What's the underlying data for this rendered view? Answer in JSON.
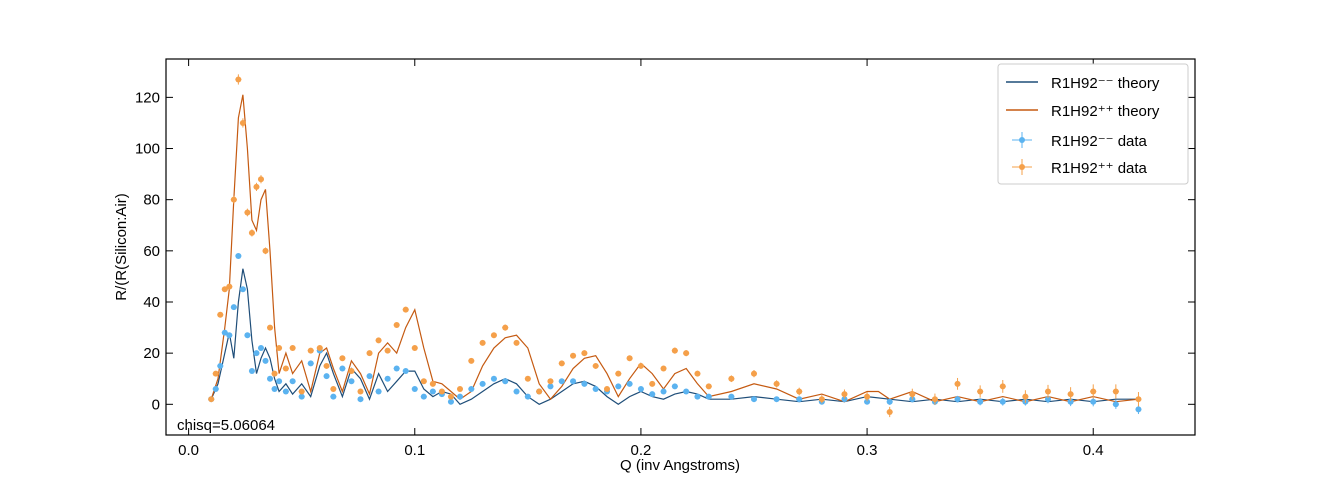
{
  "chart_data": {
    "type": "line",
    "title": "",
    "xlabel": "Q (inv Angstroms)",
    "ylabel": "R/(R(Silicon:Air)",
    "xlim": [
      -0.01,
      0.445
    ],
    "ylim": [
      -12,
      135
    ],
    "xticks": [
      0.0,
      0.1,
      0.2,
      0.3,
      0.4
    ],
    "xtick_labels": [
      "0.0",
      "0.1",
      "0.2",
      "0.3",
      "0.4"
    ],
    "yticks": [
      0,
      20,
      40,
      60,
      80,
      100,
      120
    ],
    "ytick_labels": [
      "0",
      "20",
      "40",
      "60",
      "80",
      "100",
      "120"
    ],
    "annotation": "chisq=5.06064",
    "legend_position": "top-right",
    "colors": {
      "minus_theory": "#1f4e79",
      "plus_theory": "#c55a11",
      "minus_data": "#5bb3f0",
      "plus_data": "#f5a04a"
    },
    "series": [
      {
        "name": "R1H92⁻⁻ theory",
        "kind": "line",
        "color": "#1f4e79",
        "x": [
          0.01,
          0.013,
          0.016,
          0.018,
          0.02,
          0.022,
          0.024,
          0.026,
          0.028,
          0.03,
          0.032,
          0.034,
          0.036,
          0.038,
          0.04,
          0.043,
          0.046,
          0.05,
          0.054,
          0.058,
          0.061,
          0.064,
          0.068,
          0.072,
          0.076,
          0.08,
          0.084,
          0.088,
          0.092,
          0.096,
          0.1,
          0.104,
          0.108,
          0.112,
          0.116,
          0.12,
          0.125,
          0.13,
          0.135,
          0.14,
          0.145,
          0.15,
          0.155,
          0.16,
          0.165,
          0.17,
          0.175,
          0.18,
          0.185,
          0.19,
          0.195,
          0.2,
          0.205,
          0.21,
          0.215,
          0.22,
          0.225,
          0.23,
          0.24,
          0.25,
          0.26,
          0.27,
          0.28,
          0.29,
          0.3,
          0.31,
          0.32,
          0.33,
          0.34,
          0.35,
          0.36,
          0.37,
          0.38,
          0.39,
          0.4,
          0.41,
          0.42
        ],
        "y": [
          2,
          8,
          20,
          28,
          18,
          40,
          53,
          45,
          25,
          12,
          18,
          22,
          18,
          10,
          5,
          8,
          4,
          8,
          3,
          15,
          20,
          12,
          3,
          14,
          10,
          2,
          12,
          5,
          9,
          13,
          13,
          6,
          3,
          5,
          4,
          0,
          2,
          5,
          8,
          10,
          8,
          3,
          0,
          2,
          5,
          8,
          9,
          7,
          3,
          0,
          3,
          5,
          3,
          2,
          4,
          5,
          4,
          2,
          2,
          3,
          2,
          1,
          2,
          1,
          3,
          2,
          1,
          2,
          1,
          2,
          1,
          2,
          1,
          2,
          1,
          2,
          2
        ]
      },
      {
        "name": "R1H92⁺⁺ theory",
        "kind": "line",
        "color": "#c55a11",
        "x": [
          0.01,
          0.013,
          0.016,
          0.018,
          0.02,
          0.022,
          0.024,
          0.026,
          0.028,
          0.03,
          0.032,
          0.034,
          0.036,
          0.038,
          0.04,
          0.043,
          0.046,
          0.05,
          0.054,
          0.058,
          0.061,
          0.064,
          0.068,
          0.072,
          0.076,
          0.08,
          0.084,
          0.088,
          0.092,
          0.096,
          0.1,
          0.104,
          0.108,
          0.112,
          0.116,
          0.12,
          0.125,
          0.13,
          0.135,
          0.14,
          0.145,
          0.15,
          0.155,
          0.16,
          0.165,
          0.17,
          0.175,
          0.18,
          0.185,
          0.19,
          0.195,
          0.2,
          0.205,
          0.21,
          0.215,
          0.22,
          0.225,
          0.23,
          0.24,
          0.25,
          0.26,
          0.27,
          0.28,
          0.29,
          0.3,
          0.305,
          0.31,
          0.32,
          0.33,
          0.34,
          0.35,
          0.36,
          0.37,
          0.38,
          0.39,
          0.4,
          0.41,
          0.42
        ],
        "y": [
          2,
          10,
          30,
          45,
          80,
          112,
          121,
          100,
          72,
          68,
          80,
          84,
          60,
          30,
          12,
          20,
          12,
          17,
          5,
          20,
          22,
          14,
          5,
          17,
          12,
          4,
          20,
          24,
          20,
          30,
          37,
          22,
          9,
          8,
          5,
          2,
          5,
          15,
          22,
          26,
          27,
          22,
          8,
          2,
          7,
          14,
          18,
          19,
          12,
          3,
          10,
          16,
          12,
          6,
          12,
          14,
          8,
          3,
          5,
          8,
          6,
          2,
          4,
          1,
          5,
          5,
          2,
          5,
          1,
          3,
          1,
          3,
          1,
          3,
          1,
          3,
          1,
          2
        ]
      },
      {
        "name": "R1H92⁻⁻ data",
        "kind": "errorbar",
        "color": "#5bb3f0",
        "x": [
          0.01,
          0.012,
          0.014,
          0.016,
          0.018,
          0.02,
          0.022,
          0.024,
          0.026,
          0.028,
          0.03,
          0.032,
          0.034,
          0.036,
          0.038,
          0.04,
          0.043,
          0.046,
          0.05,
          0.054,
          0.058,
          0.061,
          0.064,
          0.068,
          0.072,
          0.076,
          0.08,
          0.084,
          0.088,
          0.092,
          0.096,
          0.1,
          0.104,
          0.108,
          0.112,
          0.116,
          0.12,
          0.125,
          0.13,
          0.135,
          0.14,
          0.145,
          0.15,
          0.155,
          0.16,
          0.165,
          0.17,
          0.175,
          0.18,
          0.185,
          0.19,
          0.195,
          0.2,
          0.205,
          0.21,
          0.215,
          0.22,
          0.225,
          0.23,
          0.24,
          0.25,
          0.26,
          0.27,
          0.28,
          0.29,
          0.3,
          0.31,
          0.32,
          0.33,
          0.34,
          0.35,
          0.36,
          0.37,
          0.38,
          0.39,
          0.4,
          0.41,
          0.42
        ],
        "y": [
          2,
          6,
          15,
          28,
          27,
          38,
          58,
          45,
          27,
          13,
          20,
          22,
          17,
          10,
          6,
          9,
          5,
          9,
          3,
          16,
          21,
          11,
          3,
          14,
          9,
          2,
          11,
          5,
          10,
          14,
          13,
          6,
          3,
          5,
          4,
          1,
          3,
          6,
          8,
          10,
          9,
          5,
          3,
          5,
          7,
          9,
          9,
          8,
          6,
          5,
          7,
          8,
          6,
          4,
          5,
          7,
          5,
          3,
          3,
          3,
          2,
          2,
          2,
          1,
          2,
          1,
          1,
          2,
          1,
          2,
          1,
          1,
          1,
          2,
          1,
          1,
          0,
          -2
        ],
        "yerr": [
          0.4,
          0.4,
          0.5,
          0.6,
          0.6,
          0.7,
          0.8,
          0.7,
          0.6,
          0.5,
          0.5,
          0.5,
          0.5,
          0.5,
          0.5,
          0.5,
          0.5,
          0.5,
          0.5,
          0.5,
          0.5,
          0.5,
          0.5,
          0.5,
          0.5,
          0.5,
          0.5,
          0.5,
          0.5,
          0.5,
          0.5,
          0.5,
          0.5,
          0.5,
          0.5,
          0.5,
          0.5,
          0.5,
          0.5,
          0.5,
          0.5,
          0.5,
          0.5,
          0.5,
          0.5,
          0.5,
          0.5,
          0.5,
          0.5,
          0.5,
          0.5,
          0.5,
          0.5,
          0.5,
          0.5,
          0.5,
          0.5,
          0.5,
          0.6,
          0.6,
          0.6,
          0.7,
          0.8,
          0.9,
          1.0,
          1.0,
          1.2,
          1.2,
          1.3,
          1.3,
          1.4,
          1.5,
          1.5,
          1.6,
          1.7,
          1.8,
          1.8,
          1.8
        ]
      },
      {
        "name": "R1H92⁺⁺ data",
        "kind": "errorbar",
        "color": "#f5a04a",
        "x": [
          0.01,
          0.012,
          0.014,
          0.016,
          0.018,
          0.02,
          0.022,
          0.024,
          0.026,
          0.028,
          0.03,
          0.032,
          0.034,
          0.036,
          0.038,
          0.04,
          0.043,
          0.046,
          0.05,
          0.054,
          0.058,
          0.061,
          0.064,
          0.068,
          0.072,
          0.076,
          0.08,
          0.084,
          0.088,
          0.092,
          0.096,
          0.1,
          0.104,
          0.108,
          0.112,
          0.116,
          0.12,
          0.125,
          0.13,
          0.135,
          0.14,
          0.145,
          0.15,
          0.155,
          0.16,
          0.165,
          0.17,
          0.175,
          0.18,
          0.185,
          0.19,
          0.195,
          0.2,
          0.205,
          0.21,
          0.215,
          0.22,
          0.225,
          0.23,
          0.24,
          0.25,
          0.26,
          0.27,
          0.28,
          0.29,
          0.3,
          0.31,
          0.32,
          0.33,
          0.34,
          0.35,
          0.36,
          0.37,
          0.38,
          0.39,
          0.4,
          0.41,
          0.42
        ],
        "y": [
          2,
          12,
          35,
          45,
          46,
          80,
          127,
          110,
          75,
          67,
          85,
          88,
          60,
          30,
          12,
          22,
          14,
          22,
          5,
          21,
          22,
          15,
          6,
          18,
          13,
          5,
          20,
          25,
          21,
          31,
          37,
          22,
          9,
          8,
          5,
          3,
          6,
          17,
          24,
          27,
          30,
          24,
          10,
          5,
          9,
          16,
          19,
          20,
          15,
          6,
          12,
          18,
          15,
          8,
          14,
          21,
          20,
          12,
          7,
          10,
          12,
          8,
          5,
          2,
          4,
          3,
          -3,
          4,
          2,
          8,
          5,
          7,
          3,
          5,
          4,
          5,
          5,
          2
        ],
        "yerr": [
          0.5,
          0.6,
          0.8,
          1.0,
          1.2,
          1.5,
          2.0,
          1.8,
          1.5,
          1.4,
          1.6,
          1.6,
          1.3,
          0.9,
          0.7,
          0.8,
          0.7,
          0.8,
          0.6,
          0.8,
          0.8,
          0.7,
          0.6,
          0.7,
          0.7,
          0.6,
          0.8,
          0.9,
          0.8,
          1.0,
          1.1,
          0.9,
          0.7,
          0.7,
          0.6,
          0.6,
          0.7,
          0.9,
          1.0,
          1.1,
          1.2,
          1.0,
          0.8,
          0.8,
          0.8,
          1.0,
          1.0,
          1.1,
          1.0,
          0.9,
          1.0,
          1.1,
          1.0,
          0.9,
          1.0,
          1.2,
          1.2,
          1.1,
          1.0,
          1.3,
          1.4,
          1.4,
          1.5,
          1.6,
          1.8,
          1.8,
          2.0,
          2.1,
          2.2,
          2.3,
          2.4,
          2.5,
          2.5,
          2.6,
          2.7,
          2.8,
          2.8,
          2.8
        ]
      }
    ]
  }
}
